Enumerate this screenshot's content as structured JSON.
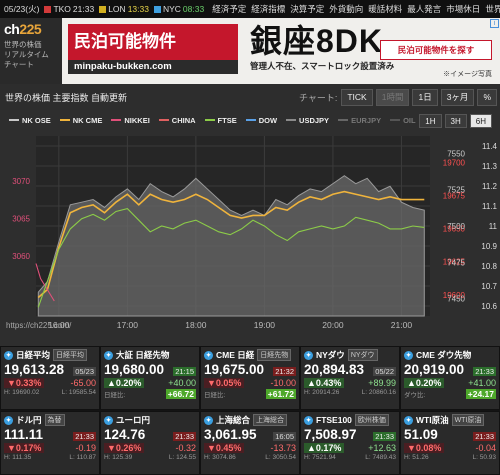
{
  "topbar": {
    "date": "05/23(火)",
    "markets": [
      {
        "name": "TKO",
        "time": "21:33",
        "color": "#d23a3a",
        "time_color": "white"
      },
      {
        "name": "LON",
        "time": "13:33",
        "color": "#d2b020",
        "time_color": "yellow"
      },
      {
        "name": "NYC",
        "time": "08:33",
        "color": "#3fa0e0",
        "time_color": "green"
      }
    ],
    "links": [
      "経済予定",
      "経済指標",
      "決算予定",
      "外貨動向",
      "暖話材料",
      "最人発言",
      "市場休日",
      "世界時計"
    ]
  },
  "brand": {
    "logo_a": "ch",
    "logo_b": "225",
    "tagline": [
      "世界の株価",
      "リアルタイム",
      "チャート"
    ]
  },
  "ad": {
    "brand_title": "民泊可能物件",
    "brand_url": "minpaku-bukken.com",
    "headline": "銀座8DK",
    "subline": "管理人不在、スマートロック設置済み",
    "cta": "民泊可能物件を探す",
    "note": "※イメージ写真"
  },
  "chart_header": {
    "title": "世界の株価 主要指数 自動更新",
    "type_label": "チャート:",
    "buttons": [
      "TICK",
      "1時間",
      "1日",
      "3ヶ月",
      "%"
    ]
  },
  "chart_panel": {
    "url": "https://ch225.com/",
    "range_buttons": [
      "1H",
      "3H",
      "6H"
    ],
    "legend": [
      {
        "name": "NK OSE",
        "color": "#c8c8c8"
      },
      {
        "name": "NK CME",
        "color": "#f0b43c"
      },
      {
        "name": "NIKKEI",
        "color": "#e0507a"
      },
      {
        "name": "CHINA",
        "color": "#e06060"
      },
      {
        "name": "FTSE",
        "color": "#8ccc48"
      },
      {
        "name": "DOW",
        "color": "#5aa0e6"
      },
      {
        "name": "USDJPY",
        "color": "#8a8a8a"
      },
      {
        "name": "EURJPY",
        "color": "#666666"
      },
      {
        "name": "OIL",
        "color": "#555555"
      }
    ]
  },
  "chart_data": {
    "type": "area",
    "x": [
      "16:00",
      "17:00",
      "18:00",
      "19:00",
      "20:00",
      "21:00"
    ],
    "xlim": [
      "15:40",
      "21:25"
    ],
    "left_axis": {
      "ticks": [
        3060,
        3065,
        3070
      ],
      "ylim": [
        3052,
        3076
      ],
      "color": "#e0507a"
    },
    "right_axis_values": {
      "ticks": [
        11.4,
        11.3,
        11.2,
        11.1,
        11.0,
        10.9,
        10.8,
        10.7,
        10.6
      ],
      "ylim": [
        10.55,
        11.45
      ],
      "color": "#dddddd"
    },
    "right_axis_ticks": {
      "ticks": [
        19700,
        19675,
        19650,
        19625,
        19600
      ],
      "ylim": [
        19584,
        19720
      ],
      "color": "#ff5050"
    },
    "right_axis_usd": {
      "ticks": [
        7550,
        7525,
        7500,
        7475,
        7450
      ],
      "ylim": [
        7438,
        7562
      ],
      "color": "#cccccc"
    },
    "series": [
      {
        "name": "NK OSE",
        "color": "#9a9a9a",
        "fill": true,
        "domain": "right_axis_ticks",
        "x": [
          "15:42",
          "15:50",
          "16:00",
          "16:10",
          "16:20",
          "16:30",
          "16:40",
          "16:50",
          "17:00",
          "17:10",
          "17:20",
          "17:30",
          "17:40",
          "17:50",
          "18:00",
          "18:10",
          "18:20",
          "18:30",
          "18:40",
          "18:50",
          "19:00",
          "19:10",
          "19:20",
          "19:30",
          "19:40",
          "19:50",
          "20:00",
          "20:10",
          "20:20",
          "20:30",
          "20:40",
          "20:50",
          "21:00",
          "21:10",
          "21:20"
        ],
        "values": [
          19602,
          19610,
          19640,
          19668,
          19670,
          19672,
          19666,
          19674,
          19680,
          19672,
          19684,
          19678,
          19674,
          19680,
          19688,
          19680,
          19672,
          19664,
          19660,
          19664,
          19660,
          19672,
          19668,
          19675,
          19680,
          19678,
          19684,
          19690,
          19684,
          19688,
          19678,
          19682,
          19670,
          19666,
          19664
        ]
      },
      {
        "name": "NK CME",
        "color": "#f0b43c",
        "fill": false,
        "domain": "right_axis_ticks",
        "x": [
          "15:42",
          "15:50",
          "16:00",
          "16:10",
          "16:20",
          "16:30",
          "16:40",
          "16:50",
          "17:00",
          "17:10",
          "17:20",
          "17:30",
          "17:40",
          "17:50",
          "18:00",
          "18:10",
          "18:20",
          "18:30",
          "18:40",
          "18:50",
          "19:00",
          "19:10",
          "19:20",
          "19:30",
          "19:40",
          "19:50",
          "20:00",
          "20:10",
          "20:20",
          "20:30",
          "20:40",
          "20:50",
          "21:00",
          "21:10",
          "21:20"
        ],
        "values": [
          19598,
          19604,
          19636,
          19662,
          19666,
          19668,
          19662,
          19670,
          19676,
          19668,
          19676,
          19672,
          19670,
          19672,
          19676,
          19672,
          19666,
          19660,
          19658,
          19660,
          19660,
          19666,
          19664,
          19670,
          19674,
          19672,
          19676,
          19678,
          19676,
          19674,
          19672,
          19674,
          19672,
          19672,
          19672
        ]
      },
      {
        "name": "NIKKEI",
        "color": "#e0507a",
        "fill": false,
        "domain": "left_axis",
        "x": [
          "15:40",
          "15:44",
          "15:48",
          "15:52",
          "15:56"
        ],
        "values": [
          3059,
          3057,
          3056,
          3055,
          3054
        ]
      },
      {
        "name": "FTSE",
        "color": "#8ccc48",
        "fill": false,
        "domain": "right_axis_usd",
        "x": [
          "15:42",
          "15:50",
          "16:00",
          "16:10",
          "16:20",
          "16:30",
          "16:40",
          "16:50",
          "17:00",
          "17:10",
          "17:20",
          "17:30",
          "17:40",
          "17:50",
          "18:00",
          "18:10",
          "18:20",
          "18:30",
          "18:40",
          "18:50",
          "19:00",
          "19:10",
          "19:20",
          "19:30",
          "19:40",
          "19:50",
          "20:00",
          "20:10",
          "20:20",
          "20:30",
          "20:40",
          "20:50",
          "21:00",
          "21:10",
          "21:20"
        ],
        "values": [
          7444,
          7462,
          7484,
          7498,
          7505,
          7508,
          7504,
          7510,
          7512,
          7504,
          7496,
          7500,
          7498,
          7502,
          7504,
          7500,
          7496,
          7494,
          7498,
          7504,
          7500,
          7494,
          7490,
          7496,
          7498,
          7500,
          7498,
          7500,
          7506,
          7504,
          7502,
          7498,
          7498,
          7500,
          7499
        ]
      }
    ]
  },
  "tickers": [
    {
      "name": "日経平均",
      "tag": "日経平均",
      "value": "19,613.28",
      "time": "05/23",
      "time_style": "n",
      "pct": "▼0.33%",
      "dir": "dn",
      "chg": "-65.00",
      "hi": "H: 19690.02",
      "lo": "L: 19585.54",
      "spread": ""
    },
    {
      "name": "大証 日経先物",
      "tag": "",
      "value": "19,680.00",
      "time": "21:15",
      "time_style": "g",
      "pct": "▲0.20%",
      "dir": "up",
      "chg": "+40.00",
      "hi": "日経比:",
      "lo": "",
      "spread": "+66.72"
    },
    {
      "name": "CME 日経",
      "tag": "日経先物",
      "value": "19,675.00",
      "time": "21:32",
      "time_style": "r",
      "pct": "▼0.05%",
      "dir": "dn",
      "chg": "-10.00",
      "hi": "日経比:",
      "lo": "",
      "spread": "+61.72"
    },
    {
      "name": "NYダウ",
      "tag": "NYダウ",
      "value": "20,894.83",
      "time": "05/22",
      "time_style": "n",
      "pct": "▲0.43%",
      "dir": "up",
      "chg": "+89.99",
      "hi": "H: 20914.26",
      "lo": "L: 20860.16",
      "spread": ""
    },
    {
      "name": "CME ダウ先物",
      "tag": "",
      "value": "20,919.00",
      "time": "21:33",
      "time_style": "g",
      "pct": "▲0.20%",
      "dir": "up",
      "chg": "+41.00",
      "hi": "ダウ比:",
      "lo": "",
      "spread": "+24.17"
    },
    {
      "name": "ドル円",
      "tag": "為替",
      "value": "111.11",
      "time": "21:33",
      "time_style": "r",
      "pct": "▼0.17%",
      "dir": "dn",
      "chg": "-0.19",
      "hi": "H: 111.35",
      "lo": "L: 110.87",
      "spread": ""
    },
    {
      "name": "ユーロ円",
      "tag": "",
      "value": "124.76",
      "time": "21:33",
      "time_style": "r",
      "pct": "▼0.26%",
      "dir": "dn",
      "chg": "-0.32",
      "hi": "H: 125.39",
      "lo": "L: 124.55",
      "spread": ""
    },
    {
      "name": "上海総合",
      "tag": "上海総合",
      "value": "3,061.95",
      "time": "16:05",
      "time_style": "n",
      "pct": "▼0.45%",
      "dir": "dn",
      "chg": "-13.73",
      "hi": "H: 3074.86",
      "lo": "L: 3050.54",
      "spread": ""
    },
    {
      "name": "FTSE100",
      "tag": "欧州株価",
      "value": "7,508.97",
      "time": "21:33",
      "time_style": "g",
      "pct": "▲0.17%",
      "dir": "up",
      "chg": "+12.63",
      "hi": "H: 7521.94",
      "lo": "L: 7489.43",
      "spread": ""
    },
    {
      "name": "WTI原油",
      "tag": "WTI原油",
      "value": "51.09",
      "time": "21:33",
      "time_style": "r",
      "pct": "▼0.08%",
      "dir": "dn",
      "chg": "-0.04",
      "hi": "H: 51.26",
      "lo": "L: 50.93",
      "spread": ""
    }
  ]
}
